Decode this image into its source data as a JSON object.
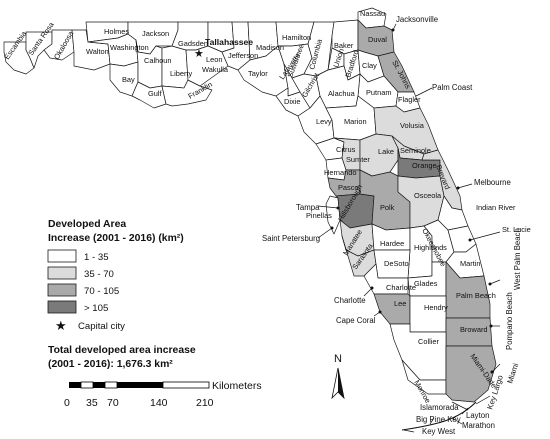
{
  "colors": {
    "class_1": "#ffffff",
    "class_2": "#dcdcdc",
    "class_3": "#aaaaaa",
    "class_4": "#7a7a7a",
    "outline": "#1a1a1a"
  },
  "legend": {
    "title_line1": "Developed Area",
    "title_line2": "Increase (2001 - 2016) (km²)",
    "items": [
      {
        "label": "1 - 35",
        "class": "class_1"
      },
      {
        "label": "35 - 70",
        "class": "class_2"
      },
      {
        "label": "70 - 105",
        "class": "class_3"
      },
      {
        "label": "> 105",
        "class": "class_4"
      }
    ],
    "capital_label": "Capital city",
    "capital_icon": "star-icon",
    "total_line1": "Total developed area increase",
    "total_line2": "(2001 - 2016): 1,676.3 km²"
  },
  "scale_bar": {
    "unit": "Kilometers",
    "ticks": [
      "0",
      "35",
      "70",
      "140",
      "210"
    ]
  },
  "north_arrow": {
    "label": "N",
    "icon": "north-arrow-icon"
  },
  "capital": {
    "name": "Tallahassee"
  },
  "county_classes": {
    "Escambia": "class_1",
    "Santa Rosa": "class_1",
    "Okaloosa": "class_1",
    "Walton": "class_1",
    "Holmes": "class_1",
    "Washington": "class_1",
    "Jackson": "class_1",
    "Bay": "class_1",
    "Calhoun": "class_1",
    "Gulf": "class_1",
    "Liberty": "class_1",
    "Gadsden": "class_1",
    "Franklin": "class_1",
    "Leon": "class_1",
    "Wakulla": "class_1",
    "Jefferson": "class_1",
    "Madison": "class_1",
    "Taylor": "class_1",
    "Hamilton": "class_1",
    "Suwannee": "class_1",
    "Lafayette": "class_1",
    "Dixie": "class_1",
    "Columbia": "class_1",
    "Gilchrist": "class_1",
    "Baker": "class_1",
    "Union": "class_1",
    "Bradford": "class_1",
    "Nassau": "class_1",
    "Duval": "class_3",
    "Clay": "class_1",
    "St. Johns": "class_3",
    "Putnam": "class_1",
    "Flagler": "class_1",
    "Alachua": "class_1",
    "Levy": "class_1",
    "Marion": "class_1",
    "Volusia": "class_2",
    "Citrus": "class_1",
    "Sumter": "class_2",
    "Lake": "class_2",
    "Seminole": "class_2",
    "Orange": "class_4",
    "Hernando": "class_1",
    "Pasco": "class_3",
    "Pinellas": "class_1",
    "Hillsborough": "class_4",
    "Polk": "class_3",
    "Osceola": "class_2",
    "Brevard": "class_2",
    "Indian River": "class_1",
    "Manatee": "class_2",
    "Hardee": "class_1",
    "Highlands": "class_1",
    "Okeechobee": "class_1",
    "St. Lucie": "class_1",
    "Sarasota": "class_2",
    "DeSoto": "class_1",
    "Martin": "class_1",
    "Charlotte": "class_1",
    "Glades": "class_1",
    "Palm Beach": "class_3",
    "Lee": "class_3",
    "Hendry": "class_1",
    "Broward": "class_3",
    "Collier": "class_1",
    "Monroe": "class_1",
    "Miami-Dade": "class_3"
  },
  "county_labels": [
    "Escambia",
    "Santa Rosa",
    "Okaloosa",
    "Walton",
    "Holmes",
    "Washington",
    "Jackson",
    "Bay",
    "Calhoun",
    "Gulf",
    "Liberty",
    "Gadsden",
    "Franklin",
    "Leon",
    "Wakulla",
    "Jefferson",
    "Madison",
    "Taylor",
    "Hamilton",
    "Suwannee",
    "Lafayette",
    "Dixie",
    "Columbia",
    "Gilchrist",
    "Baker",
    "Union",
    "Bradford",
    "Nassau",
    "Duval",
    "Clay",
    "St. Johns",
    "Putnam",
    "Flagler",
    "Alachua",
    "Levy",
    "Marion",
    "Volusia",
    "Citrus",
    "Sumter",
    "Lake",
    "Seminole",
    "Orange",
    "Hernando",
    "Pasco",
    "Pinellas",
    "Hillsborough",
    "Polk",
    "Osceola",
    "Brevard",
    "Indian River",
    "Manatee",
    "Hardee",
    "Highlands",
    "Okeechobee",
    "St. Lucie",
    "Sarasota",
    "DeSoto",
    "Martin",
    "Charlotte",
    "Glades",
    "Palm Beach",
    "Lee",
    "Hendry",
    "Broward",
    "Collier",
    "Monroe",
    "Miami-Dade"
  ],
  "cities": [
    "Jacksonville",
    "Palm Coast",
    "Melbourne",
    "Tampa",
    "Saint Petersburg",
    "St. Lucie",
    "West Palm Beach",
    "Charlotte",
    "Cape Coral",
    "Pompano Beach",
    "Miami",
    "Key Largo",
    "Layton",
    "Marathon",
    "Islamorada",
    "Big Pine Key",
    "Key West"
  ]
}
